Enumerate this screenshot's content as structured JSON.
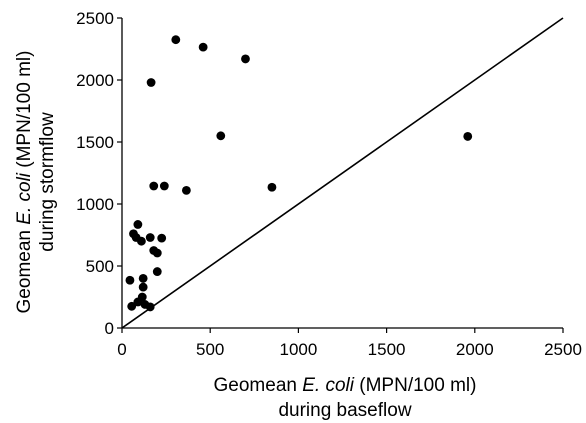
{
  "chart_data": {
    "type": "scatter",
    "xlabel": {
      "line1_pre": "Geomean ",
      "line1_italic": "E. coli",
      "line1_post": " (MPN/100 ml)",
      "line2": "during baseflow"
    },
    "ylabel": {
      "line1_pre": "Geomean ",
      "line1_italic": "E. coli",
      "line1_post": " (MPN/100 ml)",
      "line2": "during stormflow"
    },
    "xlim": [
      0,
      2500
    ],
    "ylim": [
      0,
      2500
    ],
    "x_ticks": [
      "0",
      "500",
      "1000",
      "1500",
      "2000",
      "2500"
    ],
    "y_ticks": [
      "0",
      "500",
      "1000",
      "1500",
      "2000",
      "2500"
    ],
    "grid": false,
    "reference_line": {
      "x": [
        0,
        2500
      ],
      "y": [
        0,
        2500
      ]
    },
    "points": [
      {
        "x": 305,
        "y": 2325
      },
      {
        "x": 460,
        "y": 2265
      },
      {
        "x": 700,
        "y": 2170
      },
      {
        "x": 165,
        "y": 1980
      },
      {
        "x": 560,
        "y": 1550
      },
      {
        "x": 1960,
        "y": 1545
      },
      {
        "x": 180,
        "y": 1145
      },
      {
        "x": 240,
        "y": 1145
      },
      {
        "x": 365,
        "y": 1110
      },
      {
        "x": 850,
        "y": 1135
      },
      {
        "x": 90,
        "y": 835
      },
      {
        "x": 65,
        "y": 760
      },
      {
        "x": 80,
        "y": 730
      },
      {
        "x": 160,
        "y": 730
      },
      {
        "x": 225,
        "y": 725
      },
      {
        "x": 110,
        "y": 700
      },
      {
        "x": 180,
        "y": 625
      },
      {
        "x": 200,
        "y": 605
      },
      {
        "x": 45,
        "y": 385
      },
      {
        "x": 120,
        "y": 400
      },
      {
        "x": 200,
        "y": 455
      },
      {
        "x": 120,
        "y": 330
      },
      {
        "x": 115,
        "y": 250
      },
      {
        "x": 90,
        "y": 210
      },
      {
        "x": 130,
        "y": 190
      },
      {
        "x": 55,
        "y": 175
      },
      {
        "x": 160,
        "y": 170
      }
    ]
  }
}
